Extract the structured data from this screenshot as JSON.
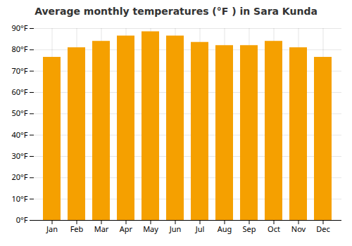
{
  "chart_data": {
    "type": "bar",
    "title": "Average monthly temperatures (°F ) in Sara Kunda",
    "categories": [
      "Jan",
      "Feb",
      "Mar",
      "Apr",
      "May",
      "Jun",
      "Jul",
      "Aug",
      "Sep",
      "Oct",
      "Nov",
      "Dec"
    ],
    "values": [
      76.5,
      81.0,
      84.0,
      86.5,
      88.5,
      86.5,
      83.5,
      82.0,
      82.0,
      84.0,
      81.0,
      76.5
    ],
    "color": "#F5A000",
    "ylim": [
      0,
      90
    ],
    "yticks": [
      {
        "value": 0,
        "label": "0°F"
      },
      {
        "value": 10,
        "label": "10°F"
      },
      {
        "value": 20,
        "label": "20°F"
      },
      {
        "value": 30,
        "label": "30°F"
      },
      {
        "value": 40,
        "label": "40°F"
      },
      {
        "value": 50,
        "label": "50°F"
      },
      {
        "value": 60,
        "label": "60°F"
      },
      {
        "value": 70,
        "label": "70°F"
      },
      {
        "value": 80,
        "label": "80°F"
      },
      {
        "value": 90,
        "label": "90°F"
      }
    ],
    "grid": true
  }
}
